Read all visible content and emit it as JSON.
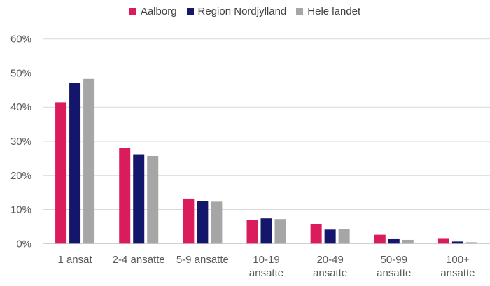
{
  "chart_data": {
    "type": "bar",
    "title": "",
    "xlabel": "",
    "ylabel": "",
    "categories": [
      "1 ansat",
      "2-4 ansatte",
      "5-9 ansatte",
      "10-19 ansatte",
      "20-49 ansatte",
      "50-99 ansatte",
      "100+ ansatte"
    ],
    "category_lines": [
      [
        "1 ansat"
      ],
      [
        "2-4 ansatte"
      ],
      [
        "5-9 ansatte"
      ],
      [
        "10-19",
        "ansatte"
      ],
      [
        "20-49",
        "ansatte"
      ],
      [
        "50-99",
        "ansatte"
      ],
      [
        "100+",
        "ansatte"
      ]
    ],
    "series": [
      {
        "name": "Aalborg",
        "color": "#DA1C5C",
        "values": [
          41.4,
          28.0,
          13.2,
          7.0,
          5.7,
          2.6,
          1.4
        ]
      },
      {
        "name": "Region Nordjylland",
        "color": "#14166B",
        "values": [
          47.2,
          26.2,
          12.5,
          7.4,
          4.1,
          1.3,
          0.6
        ]
      },
      {
        "name": "Hele landet",
        "color": "#A6A6A6",
        "values": [
          48.3,
          25.7,
          12.3,
          7.2,
          4.2,
          1.1,
          0.4
        ]
      }
    ],
    "ylim": [
      0,
      60
    ],
    "yticks": [
      "0%",
      "10%",
      "20%",
      "30%",
      "40%",
      "50%",
      "60%"
    ],
    "grid": true,
    "legend": "top"
  }
}
